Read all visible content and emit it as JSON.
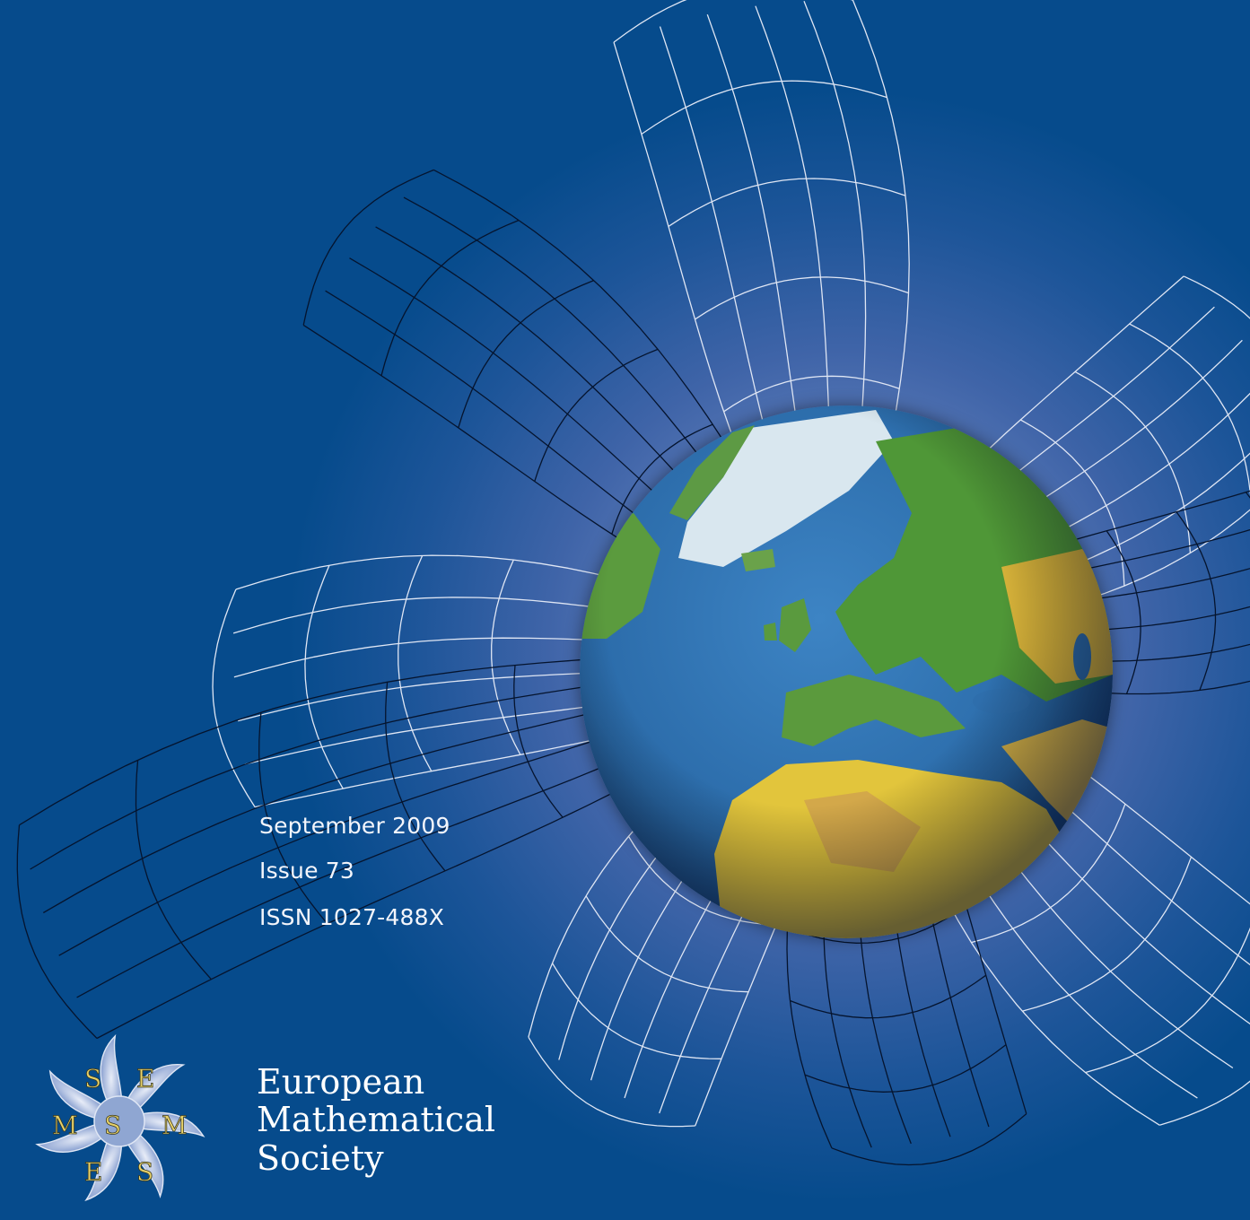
{
  "cover": {
    "date": "September 2009",
    "issue": "Issue 73",
    "issn": "ISSN 1027-488X"
  },
  "society": {
    "line1": "European",
    "line2": "Mathematical",
    "line3": "Society"
  },
  "logo": {
    "letters": [
      "S",
      "E",
      "M",
      "S",
      "E",
      "S",
      "M"
    ]
  },
  "colors": {
    "background": "#064b8c",
    "glow": "#8fa6d2",
    "grid_white": "#dfe6f4",
    "grid_black": "#05142e",
    "logo_gold": "#e8d26a",
    "ocean": "#2d72b2",
    "land_green": "#4e9a3a",
    "land_yellow": "#e3c83a",
    "ice": "#d8e6f0"
  }
}
